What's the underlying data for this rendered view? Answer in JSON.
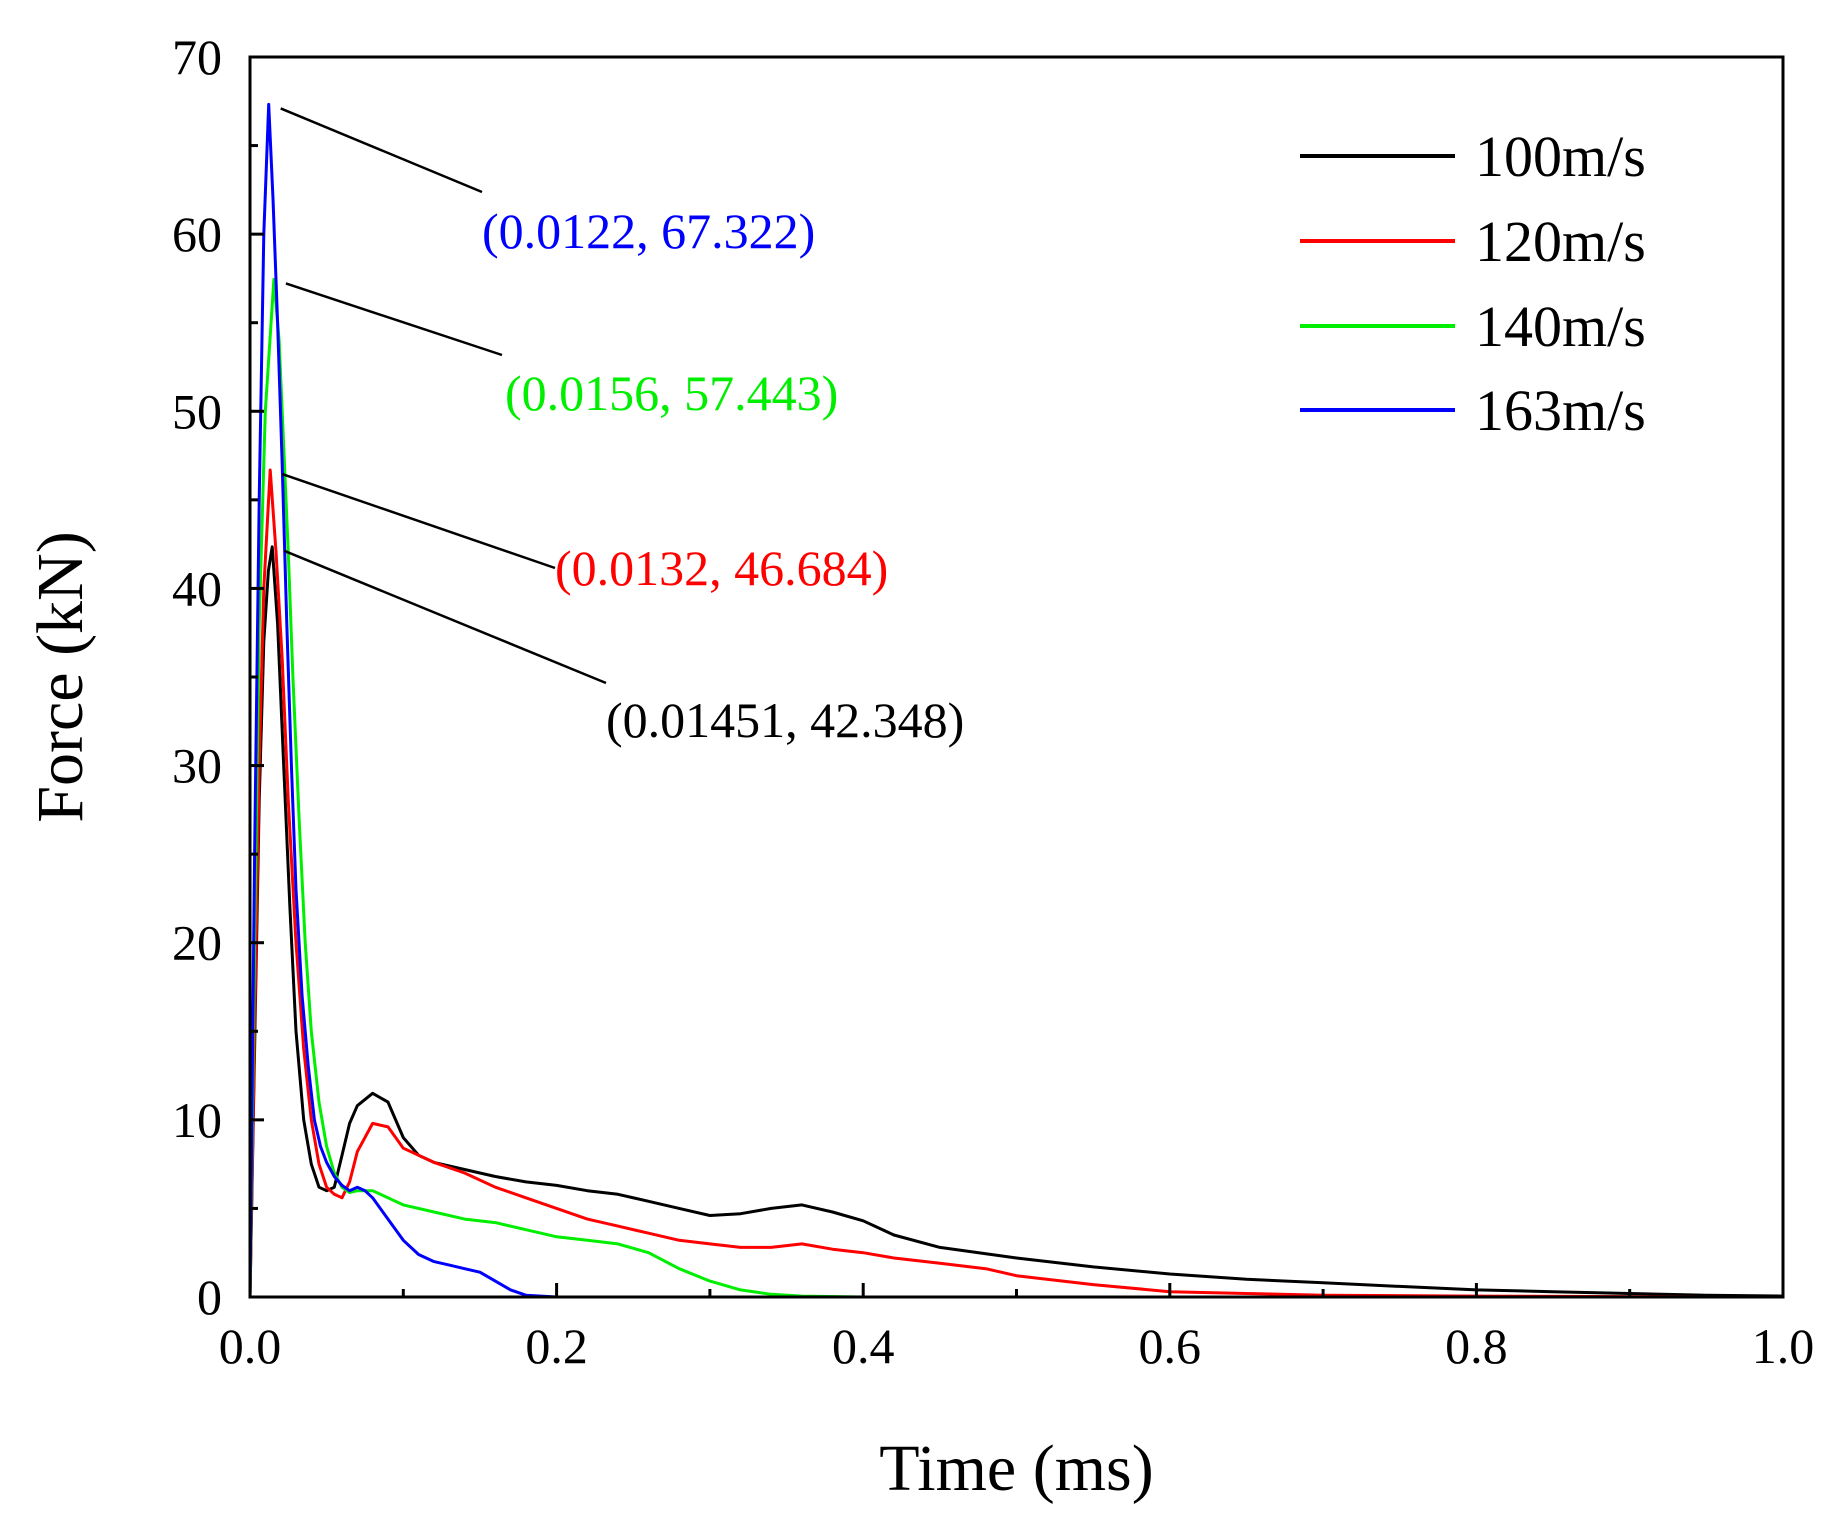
{
  "chart_data": {
    "type": "line",
    "title": "",
    "xlabel": "Time (ms)",
    "ylabel": "Force (kN)",
    "xlim": [
      0,
      1.0
    ],
    "ylim": [
      0,
      70
    ],
    "xticks": [
      0.0,
      0.2,
      0.4,
      0.6,
      0.8,
      1.0
    ],
    "xtick_labels": [
      "0.0",
      "0.2",
      "0.4",
      "0.6",
      "0.8",
      "1.0"
    ],
    "yticks": [
      0,
      10,
      20,
      30,
      40,
      50,
      60,
      70
    ],
    "ytick_labels": [
      "0",
      "10",
      "20",
      "30",
      "40",
      "50",
      "60",
      "70"
    ],
    "grid": false,
    "legend_position": "top-right",
    "series": [
      {
        "name": "100m/s",
        "color": "#000000",
        "x": [
          0,
          0.003,
          0.006,
          0.009,
          0.012,
          0.01451,
          0.018,
          0.022,
          0.026,
          0.03,
          0.035,
          0.04,
          0.045,
          0.05,
          0.055,
          0.06,
          0.065,
          0.07,
          0.08,
          0.09,
          0.1,
          0.11,
          0.12,
          0.14,
          0.16,
          0.18,
          0.2,
          0.22,
          0.24,
          0.26,
          0.28,
          0.3,
          0.32,
          0.34,
          0.36,
          0.38,
          0.4,
          0.42,
          0.45,
          0.5,
          0.55,
          0.6,
          0.65,
          0.7,
          0.75,
          0.8,
          0.85,
          0.9,
          0.95,
          1.0
        ],
        "y": [
          0,
          14,
          28,
          37,
          41,
          42.348,
          38,
          30,
          22,
          15,
          10,
          7.5,
          6.2,
          6.0,
          6.2,
          8.0,
          9.8,
          10.8,
          11.5,
          11.0,
          9.0,
          8.0,
          7.6,
          7.2,
          6.8,
          6.5,
          6.3,
          6.0,
          5.8,
          5.4,
          5.0,
          4.6,
          4.7,
          5.0,
          5.2,
          4.8,
          4.3,
          3.5,
          2.8,
          2.2,
          1.7,
          1.3,
          1.0,
          0.8,
          0.6,
          0.4,
          0.3,
          0.2,
          0.1,
          0.05
        ]
      },
      {
        "name": "120m/s",
        "color": "#ff0000",
        "x": [
          0,
          0.003,
          0.006,
          0.009,
          0.0132,
          0.017,
          0.021,
          0.025,
          0.03,
          0.035,
          0.04,
          0.045,
          0.05,
          0.055,
          0.06,
          0.065,
          0.07,
          0.08,
          0.09,
          0.1,
          0.12,
          0.14,
          0.16,
          0.18,
          0.2,
          0.22,
          0.24,
          0.26,
          0.28,
          0.3,
          0.32,
          0.34,
          0.36,
          0.38,
          0.4,
          0.42,
          0.45,
          0.48,
          0.5,
          0.55,
          0.6,
          0.65,
          0.7,
          0.8,
          0.9,
          0.95
        ],
        "y": [
          0,
          15,
          30,
          40,
          46.684,
          42,
          36,
          28,
          20,
          14,
          10,
          7.5,
          6.2,
          5.8,
          5.6,
          6.5,
          8.2,
          9.8,
          9.6,
          8.4,
          7.6,
          7.0,
          6.2,
          5.6,
          5.0,
          4.4,
          4.0,
          3.6,
          3.2,
          3.0,
          2.8,
          2.8,
          3.0,
          2.7,
          2.5,
          2.2,
          1.9,
          1.6,
          1.2,
          0.7,
          0.3,
          0.2,
          0.1,
          0.05,
          0.02,
          0
        ]
      },
      {
        "name": "140m/s",
        "color": "#00ee00",
        "x": [
          0,
          0.003,
          0.006,
          0.01,
          0.0156,
          0.019,
          0.022,
          0.025,
          0.028,
          0.032,
          0.036,
          0.04,
          0.045,
          0.05,
          0.055,
          0.06,
          0.065,
          0.07,
          0.08,
          0.09,
          0.1,
          0.12,
          0.14,
          0.16,
          0.18,
          0.2,
          0.22,
          0.24,
          0.26,
          0.28,
          0.3,
          0.32,
          0.34,
          0.36,
          0.4,
          0.5,
          0.6,
          0.7
        ],
        "y": [
          0,
          20,
          38,
          50,
          57.443,
          54,
          48,
          42,
          35,
          27,
          20,
          15,
          11,
          8.5,
          7.0,
          6.2,
          5.9,
          6.0,
          6.0,
          5.6,
          5.2,
          4.8,
          4.4,
          4.2,
          3.8,
          3.4,
          3.2,
          3.0,
          2.5,
          1.6,
          0.9,
          0.4,
          0.15,
          0.05,
          0,
          0,
          0,
          0
        ]
      },
      {
        "name": "163m/s",
        "color": "#0000ff",
        "x": [
          0,
          0.003,
          0.006,
          0.009,
          0.0122,
          0.015,
          0.018,
          0.021,
          0.024,
          0.027,
          0.03,
          0.034,
          0.038,
          0.042,
          0.046,
          0.05,
          0.055,
          0.06,
          0.065,
          0.07,
          0.075,
          0.08,
          0.09,
          0.1,
          0.11,
          0.12,
          0.13,
          0.14,
          0.15,
          0.16,
          0.17,
          0.18,
          0.2,
          0.25,
          0.3
        ],
        "y": [
          0,
          25,
          45,
          60,
          67.322,
          62,
          55,
          47,
          38,
          30,
          23,
          17,
          13,
          10,
          8.5,
          7.6,
          6.8,
          6.3,
          6.0,
          6.2,
          6.0,
          5.6,
          4.4,
          3.2,
          2.4,
          2.0,
          1.8,
          1.6,
          1.4,
          0.9,
          0.4,
          0.1,
          0,
          0,
          0
        ]
      }
    ],
    "annotations": [
      {
        "text": "(0.0122, 67.322)",
        "x": 0.0122,
        "y": 67.322,
        "color": "#0000ff"
      },
      {
        "text": "(0.0156, 57.443)",
        "x": 0.0156,
        "y": 57.443,
        "color": "#00ee00"
      },
      {
        "text": "(0.0132, 46.684)",
        "x": 0.0132,
        "y": 46.684,
        "color": "#ff0000"
      },
      {
        "text": "(0.01451, 42.348)",
        "x": 0.01451,
        "y": 42.348,
        "color": "#000000"
      }
    ]
  }
}
